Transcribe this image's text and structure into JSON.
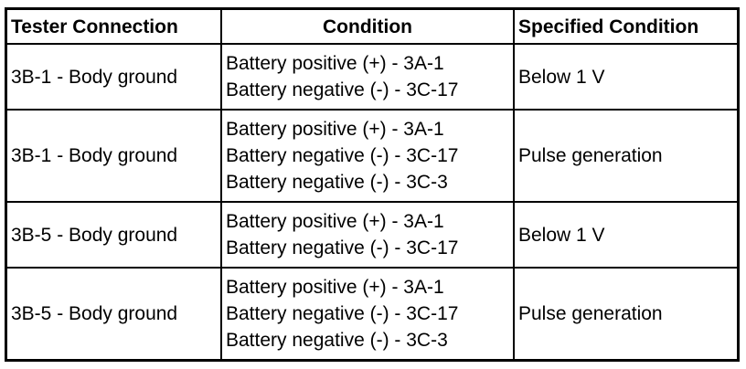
{
  "table": {
    "headers": [
      "Tester Connection",
      "Condition",
      "Specified Condition"
    ],
    "rows": [
      {
        "tester": "3B-1 - Body ground",
        "conditions": [
          "Battery positive (+) - 3A-1",
          "Battery negative (-) - 3C-17"
        ],
        "specified": "Below 1 V"
      },
      {
        "tester": "3B-1 - Body ground",
        "conditions": [
          "Battery positive (+) - 3A-1",
          "Battery negative (-) - 3C-17",
          "Battery negative (-) - 3C-3"
        ],
        "specified": "Pulse generation"
      },
      {
        "tester": "3B-5 - Body ground",
        "conditions": [
          "Battery positive (+) - 3A-1",
          "Battery negative (-) - 3C-17"
        ],
        "specified": "Below 1 V"
      },
      {
        "tester": "3B-5 - Body ground",
        "conditions": [
          "Battery positive (+) - 3A-1",
          "Battery negative (-) - 3C-17",
          "Battery negative (-) - 3C-3"
        ],
        "specified": "Pulse generation"
      }
    ]
  }
}
